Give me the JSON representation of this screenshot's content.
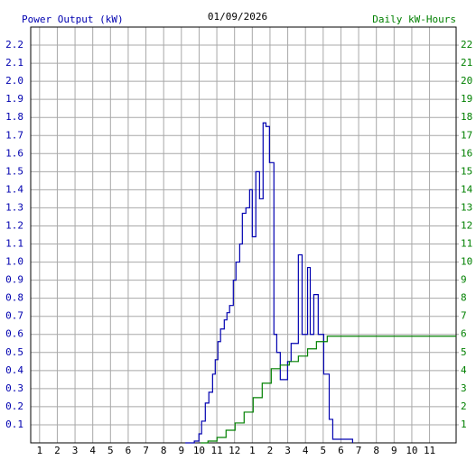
{
  "chart_data": {
    "type": "step",
    "title": "01/09/2026",
    "y_label": "Power Output (kW)",
    "y2_label": "Daily kW-Hours",
    "grid": true,
    "xlim": [
      0.5,
      24.5
    ],
    "xticks": [
      1,
      2,
      3,
      4,
      5,
      6,
      7,
      8,
      9,
      10,
      11,
      12,
      {
        "value": 13,
        "label": "1"
      },
      {
        "value": 14,
        "label": "2"
      },
      {
        "value": 15,
        "label": "3"
      },
      {
        "value": 16,
        "label": "4"
      },
      {
        "value": 17,
        "label": "5"
      },
      {
        "value": 18,
        "label": "6"
      },
      {
        "value": 19,
        "label": "7"
      },
      {
        "value": 20,
        "label": "8"
      },
      {
        "value": 21,
        "label": "9"
      },
      {
        "value": 22,
        "label": "10"
      },
      {
        "value": 23,
        "label": "11"
      }
    ],
    "ylim": [
      0,
      2.3
    ],
    "yticks": [
      0.1,
      0.2,
      0.3,
      0.4,
      0.5,
      0.6,
      0.7,
      0.8,
      0.9,
      {
        "value": 1,
        "label": "1.0"
      },
      1.1,
      1.2,
      1.3,
      1.4,
      1.5,
      1.6,
      1.7,
      1.8,
      1.9,
      {
        "value": 2,
        "label": "2.0"
      },
      2.1,
      2.2
    ],
    "y2lim": [
      0,
      23
    ],
    "y2ticks": [
      1,
      2,
      3,
      4,
      5,
      6,
      7,
      8,
      9,
      10,
      11,
      12,
      13,
      14,
      15,
      16,
      17,
      18,
      19,
      20,
      21,
      22
    ],
    "series": [
      {
        "color": "#0000b0",
        "x": [
          9.22,
          9.73,
          9.99,
          10.14,
          10.35,
          10.55,
          10.76,
          10.91,
          11.06,
          11.21,
          11.42,
          11.57,
          11.72,
          11.93,
          12.08,
          12.29,
          12.44,
          12.64,
          12.85,
          13.0,
          13.2,
          13.41,
          13.61,
          13.77,
          13.97,
          14.22,
          14.38,
          14.58,
          14.84,
          14.99,
          15.19,
          15.6,
          15.81,
          16.12,
          16.27,
          16.47,
          16.72,
          17.03,
          17.34,
          17.54,
          18.66
        ],
        "values": [
          0,
          0.01,
          0.05,
          0.12,
          0.22,
          0.28,
          0.38,
          0.46,
          0.56,
          0.63,
          0.68,
          0.72,
          0.76,
          0.9,
          1.0,
          1.1,
          1.27,
          1.3,
          1.4,
          1.14,
          1.5,
          1.35,
          1.77,
          1.75,
          1.55,
          0.6,
          0.5,
          0.35,
          0.35,
          0.45,
          0.55,
          1.04,
          0.6,
          0.97,
          0.6,
          0.82,
          0.6,
          0.38,
          0.13,
          0.02,
          0
        ]
      },
      {
        "color": "#008000",
        "axis": "y2",
        "x": [
          10.09,
          10.5,
          11.01,
          11.52,
          12.03,
          12.54,
          13.05,
          13.56,
          14.07,
          14.58,
          15.09,
          15.6,
          16.12,
          16.62,
          17.23,
          24.5
        ],
        "values": [
          0,
          0.1,
          0.3,
          0.7,
          1.1,
          1.7,
          2.5,
          3.3,
          4.1,
          4.3,
          4.5,
          4.8,
          5.2,
          5.6,
          5.9,
          5.9
        ]
      }
    ]
  }
}
